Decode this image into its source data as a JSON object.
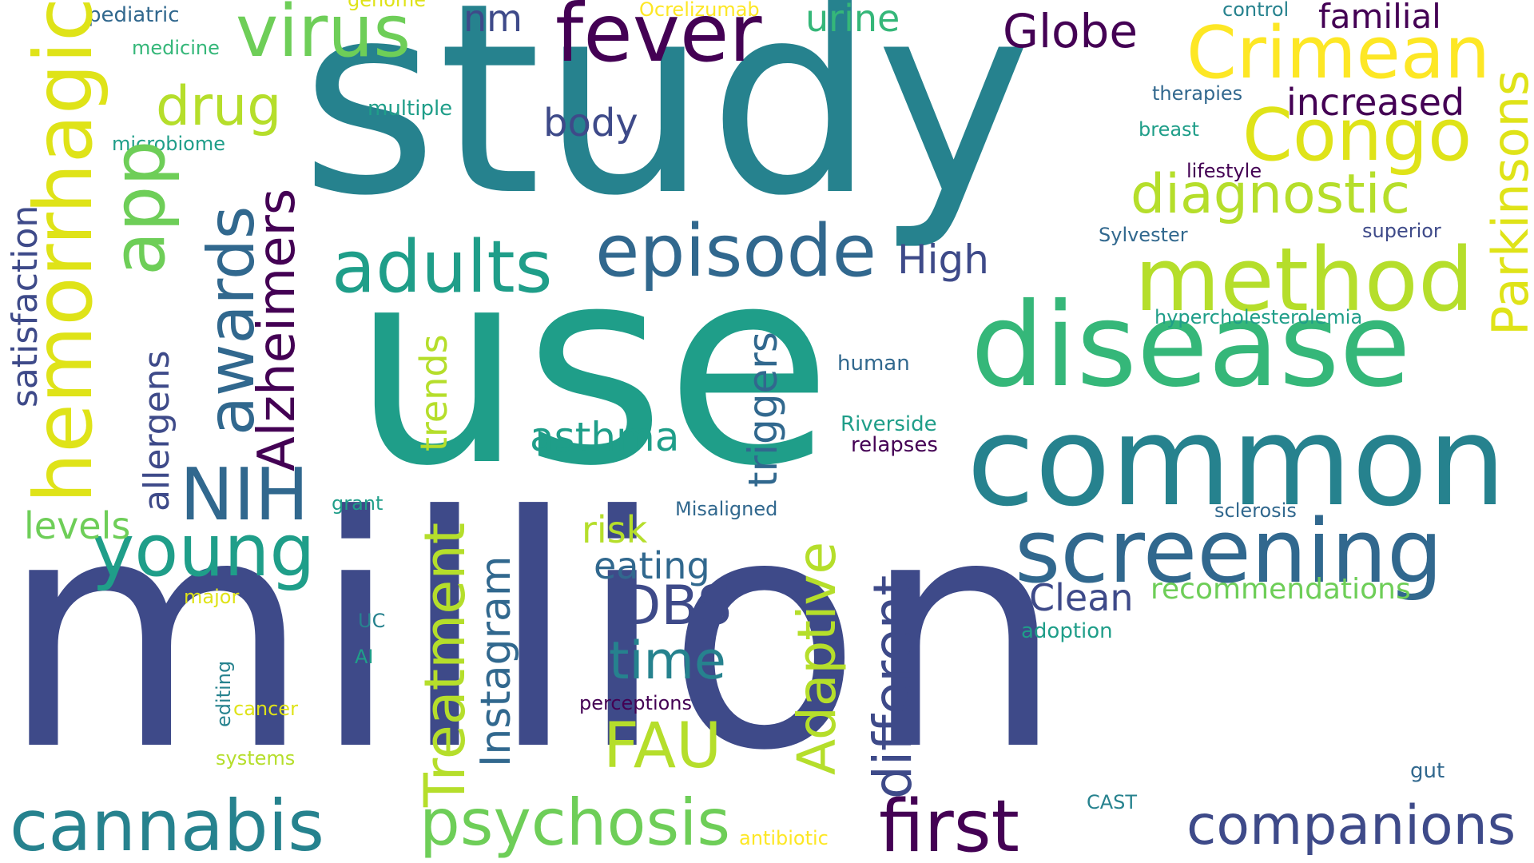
{
  "palette": {
    "background": "#ffffff",
    "dark_purple": "#440154",
    "indigo": "#3e4a89",
    "blue": "#31688e",
    "teal_blue": "#26828e",
    "teal": "#1f9e89",
    "green": "#35b779",
    "light_green": "#6ece58",
    "yellow_green": "#b5de2b",
    "yellow": "#dfe318",
    "bright_yellow": "#fde725"
  },
  "words": [
    "study",
    "use",
    "million",
    "disease",
    "common",
    "method",
    "screening",
    "Crimean",
    "fever",
    "virus",
    "episode",
    "adults",
    "hemorrhagic",
    "Congo",
    "diagnostic",
    "Parkinsons",
    "awards",
    "Alzheimers",
    "app",
    "NIH",
    "young",
    "cannabis",
    "psychosis",
    "first",
    "companions",
    "FAU",
    "DBS",
    "time",
    "Adaptive",
    "different",
    "Treatment",
    "Instagram",
    "triggers",
    "trends",
    "asthma",
    "eating",
    "risk",
    "Clean",
    "recommendations",
    "increased",
    "familial",
    "Globe",
    "drug",
    "body",
    "High",
    "nm",
    "urine",
    "satisfaction",
    "allergens",
    "levels",
    "pediatric",
    "genome",
    "Ocrelizumab",
    "control",
    "medicine",
    "multiple",
    "microbiome",
    "therapies",
    "breast",
    "lifestyle",
    "Sylvester",
    "superior",
    "hypercholesterolemia",
    "human",
    "Riverside",
    "relapses",
    "grant",
    "Misaligned",
    "sclerosis",
    "major",
    "UC",
    "AI",
    "editing",
    "cancer",
    "systems",
    "perceptions",
    "adoption",
    "gut",
    "CAST",
    "antibiotic"
  ]
}
